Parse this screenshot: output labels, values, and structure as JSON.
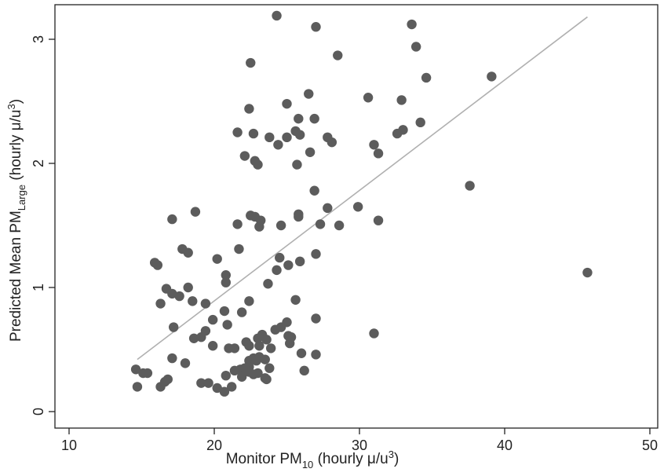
{
  "chart_data": {
    "type": "scatter",
    "title": "",
    "xlabel": {
      "main": "Monitor PM",
      "sub": "10",
      "units": " (hourly μ/u",
      "sup": "3",
      "close": ")"
    },
    "ylabel": {
      "main": "Predicted Mean PM",
      "sub": "Large",
      "units": " (hourly μ/u",
      "sup": "3",
      "close": ")"
    },
    "xlim": [
      10,
      50
    ],
    "ylim": [
      0,
      3.3
    ],
    "xticks": [
      10,
      20,
      30,
      40,
      50
    ],
    "yticks": [
      0,
      1,
      2,
      3
    ],
    "grid": false,
    "fit_line": {
      "x": [
        14.7,
        45.7
      ],
      "y": [
        0.42,
        3.18
      ]
    },
    "colors": {
      "points": "#5c5c5c",
      "fit_line": "#b0b0b0",
      "axis": "#222222"
    },
    "points": [
      [
        24.3,
        3.19
      ],
      [
        27.0,
        3.1
      ],
      [
        33.6,
        3.12
      ],
      [
        33.9,
        2.94
      ],
      [
        22.5,
        2.81
      ],
      [
        28.5,
        2.87
      ],
      [
        34.6,
        2.69
      ],
      [
        39.1,
        2.7
      ],
      [
        26.5,
        2.56
      ],
      [
        30.6,
        2.53
      ],
      [
        25.0,
        2.48
      ],
      [
        32.9,
        2.51
      ],
      [
        22.4,
        2.44
      ],
      [
        21.6,
        2.25
      ],
      [
        22.7,
        2.24
      ],
      [
        23.8,
        2.21
      ],
      [
        25.0,
        2.21
      ],
      [
        25.6,
        2.26
      ],
      [
        25.9,
        2.23
      ],
      [
        26.9,
        2.36
      ],
      [
        25.8,
        2.36
      ],
      [
        24.4,
        2.15
      ],
      [
        27.8,
        2.21
      ],
      [
        28.1,
        2.17
      ],
      [
        31.0,
        2.15
      ],
      [
        32.6,
        2.24
      ],
      [
        33.0,
        2.27
      ],
      [
        34.2,
        2.33
      ],
      [
        22.1,
        2.06
      ],
      [
        22.8,
        2.02
      ],
      [
        23.0,
        1.99
      ],
      [
        25.7,
        1.99
      ],
      [
        26.6,
        2.09
      ],
      [
        31.3,
        2.08
      ],
      [
        37.6,
        1.82
      ],
      [
        26.9,
        1.78
      ],
      [
        17.1,
        1.55
      ],
      [
        18.7,
        1.61
      ],
      [
        21.6,
        1.51
      ],
      [
        22.5,
        1.58
      ],
      [
        22.8,
        1.57
      ],
      [
        23.2,
        1.54
      ],
      [
        23.1,
        1.49
      ],
      [
        24.6,
        1.5
      ],
      [
        25.8,
        1.59
      ],
      [
        25.8,
        1.57
      ],
      [
        27.8,
        1.64
      ],
      [
        27.3,
        1.51
      ],
      [
        28.6,
        1.5
      ],
      [
        29.9,
        1.65
      ],
      [
        31.3,
        1.54
      ],
      [
        17.8,
        1.31
      ],
      [
        18.2,
        1.28
      ],
      [
        21.7,
        1.31
      ],
      [
        15.9,
        1.2
      ],
      [
        16.1,
        1.18
      ],
      [
        20.2,
        1.23
      ],
      [
        20.8,
        1.1
      ],
      [
        20.8,
        1.04
      ],
      [
        24.5,
        1.24
      ],
      [
        24.3,
        1.14
      ],
      [
        25.1,
        1.18
      ],
      [
        25.9,
        1.21
      ],
      [
        27.0,
        1.27
      ],
      [
        23.7,
        1.03
      ],
      [
        45.7,
        1.12
      ],
      [
        16.7,
        0.99
      ],
      [
        17.1,
        0.95
      ],
      [
        17.6,
        0.93
      ],
      [
        18.2,
        1.0
      ],
      [
        18.5,
        0.89
      ],
      [
        16.3,
        0.87
      ],
      [
        19.4,
        0.87
      ],
      [
        25.6,
        0.9
      ],
      [
        22.4,
        0.89
      ],
      [
        21.9,
        0.8
      ],
      [
        20.7,
        0.81
      ],
      [
        19.9,
        0.74
      ],
      [
        17.2,
        0.68
      ],
      [
        19.4,
        0.65
      ],
      [
        20.9,
        0.7
      ],
      [
        24.2,
        0.66
      ],
      [
        24.6,
        0.68
      ],
      [
        25.0,
        0.72
      ],
      [
        27.0,
        0.75
      ],
      [
        18.6,
        0.59
      ],
      [
        19.1,
        0.6
      ],
      [
        23.0,
        0.59
      ],
      [
        23.3,
        0.62
      ],
      [
        23.1,
        0.53
      ],
      [
        23.6,
        0.58
      ],
      [
        25.1,
        0.61
      ],
      [
        25.2,
        0.55
      ],
      [
        31.0,
        0.63
      ],
      [
        19.9,
        0.53
      ],
      [
        21.0,
        0.51
      ],
      [
        21.4,
        0.51
      ],
      [
        22.2,
        0.56
      ],
      [
        22.4,
        0.53
      ],
      [
        23.9,
        0.51
      ],
      [
        26.0,
        0.47
      ],
      [
        27.0,
        0.46
      ],
      [
        17.1,
        0.43
      ],
      [
        18.0,
        0.39
      ],
      [
        22.4,
        0.41
      ],
      [
        22.7,
        0.43
      ],
      [
        23.1,
        0.44
      ],
      [
        23.5,
        0.42
      ],
      [
        14.6,
        0.34
      ],
      [
        15.1,
        0.31
      ],
      [
        15.4,
        0.31
      ],
      [
        16.8,
        0.26
      ],
      [
        21.4,
        0.33
      ],
      [
        21.8,
        0.34
      ],
      [
        22.4,
        0.36
      ],
      [
        22.7,
        0.3
      ],
      [
        23.0,
        0.31
      ],
      [
        23.8,
        0.35
      ],
      [
        21.9,
        0.28
      ],
      [
        23.5,
        0.27
      ],
      [
        26.2,
        0.33
      ],
      [
        14.7,
        0.2
      ],
      [
        16.3,
        0.2
      ],
      [
        16.6,
        0.24
      ],
      [
        19.1,
        0.23
      ],
      [
        19.6,
        0.23
      ],
      [
        20.2,
        0.19
      ],
      [
        20.7,
        0.16
      ],
      [
        21.2,
        0.2
      ],
      [
        20.8,
        0.29
      ],
      [
        22.1,
        0.35
      ],
      [
        22.4,
        0.32
      ],
      [
        22.9,
        0.41
      ],
      [
        23.6,
        0.26
      ],
      [
        25.3,
        0.6
      ]
    ]
  }
}
